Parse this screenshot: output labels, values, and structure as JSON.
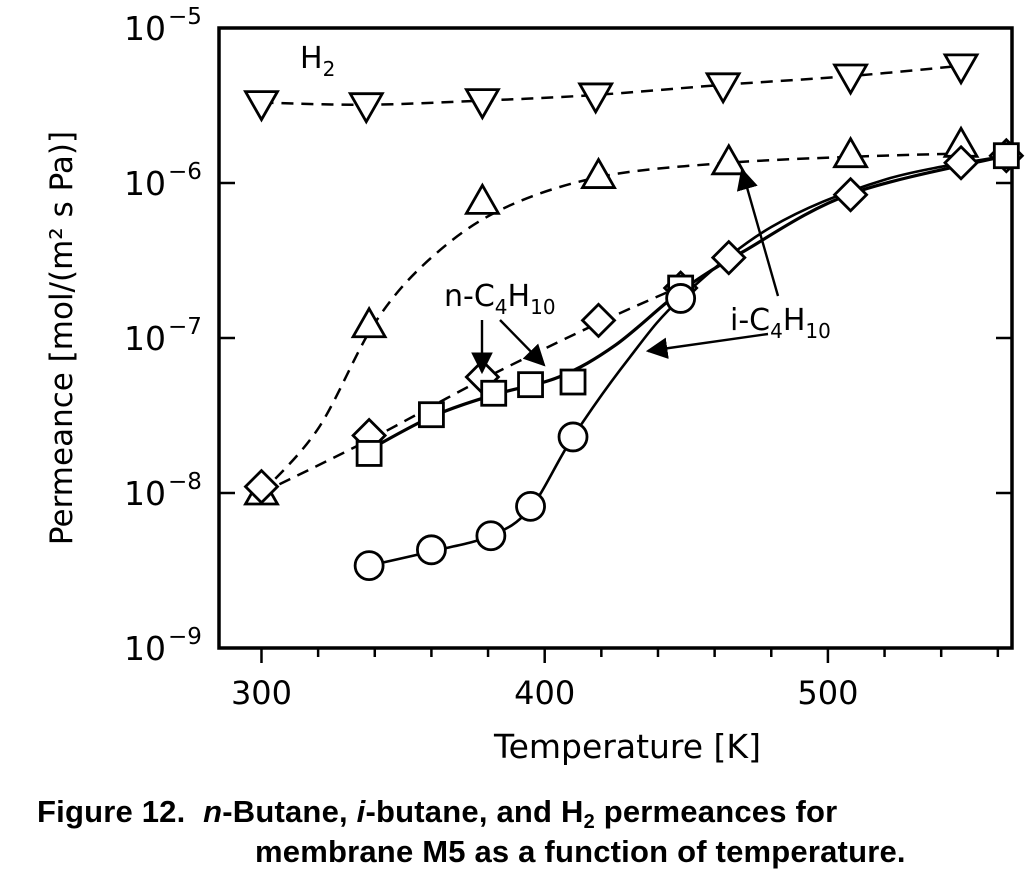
{
  "chart_data": {
    "type": "scatter",
    "xlabel": "Temperature [K]",
    "ylabel": "Permeance [mol/(m² s Pa)]",
    "xlim": [
      285,
      565
    ],
    "ylim_log10": [
      -9,
      -5
    ],
    "y_scale": "log",
    "x_ticks": [
      300,
      400,
      500
    ],
    "y_tick_exponents": [
      -9,
      -8,
      -7,
      -6,
      -5
    ],
    "y_tick_base": "10",
    "labels": {
      "h2": "H",
      "h2_sub": "2",
      "n_prefix": "n-C",
      "i_prefix": "i-C",
      "c_sub": "4",
      "h_mid": "H",
      "h_sub": "10"
    },
    "series": [
      {
        "marker": "triangle-down",
        "line": "dashed",
        "x": [
          300,
          337,
          378,
          418,
          463,
          508,
          547
        ],
        "y": [
          3.3e-06,
          3.2e-06,
          3.4e-06,
          3.7e-06,
          4.3e-06,
          4.9e-06,
          5.7e-06
        ]
      },
      {
        "marker": "triangle-up",
        "line": "dashed",
        "x": [
          300,
          338,
          378,
          419,
          465,
          508,
          547
        ],
        "y": [
          1e-08,
          1.2e-07,
          7.5e-07,
          1.1e-06,
          1.35e-06,
          1.5e-06,
          1.75e-06
        ]
      },
      {
        "marker": "diamond",
        "line": "dashed",
        "x": [
          300,
          338,
          378,
          419,
          448,
          465,
          508,
          547,
          563
        ],
        "y": [
          1.1e-08,
          2.35e-08,
          5.6e-08,
          1.3e-07,
          2.1e-07,
          3.3e-07,
          8.4e-07,
          1.35e-06,
          1.5e-06
        ]
      },
      {
        "marker": "square",
        "line": "solid",
        "x": [
          338,
          360,
          382,
          395,
          410,
          448,
          563
        ],
        "y": [
          1.8e-08,
          3.2e-08,
          4.4e-08,
          5e-08,
          5.2e-08,
          2.1e-07,
          1.5e-06
        ]
      },
      {
        "marker": "circle",
        "line": "solid",
        "x": [
          338,
          360,
          381,
          395,
          410,
          448
        ],
        "y": [
          3.4e-09,
          4.3e-09,
          5.3e-09,
          8.2e-09,
          2.3e-08,
          1.8e-07
        ]
      }
    ],
    "annotations": [
      "H₂",
      "n-C₄H₁₀",
      "i-C₄H₁₀"
    ]
  },
  "caption": {
    "label": "Figure 12.",
    "n": "n",
    "t1": "-Butane,",
    "i": "i",
    "t2": "-butane, and H",
    "sub": "2",
    "t3": " permeances for",
    "line2": "membrane M5 as a function of temperature."
  }
}
